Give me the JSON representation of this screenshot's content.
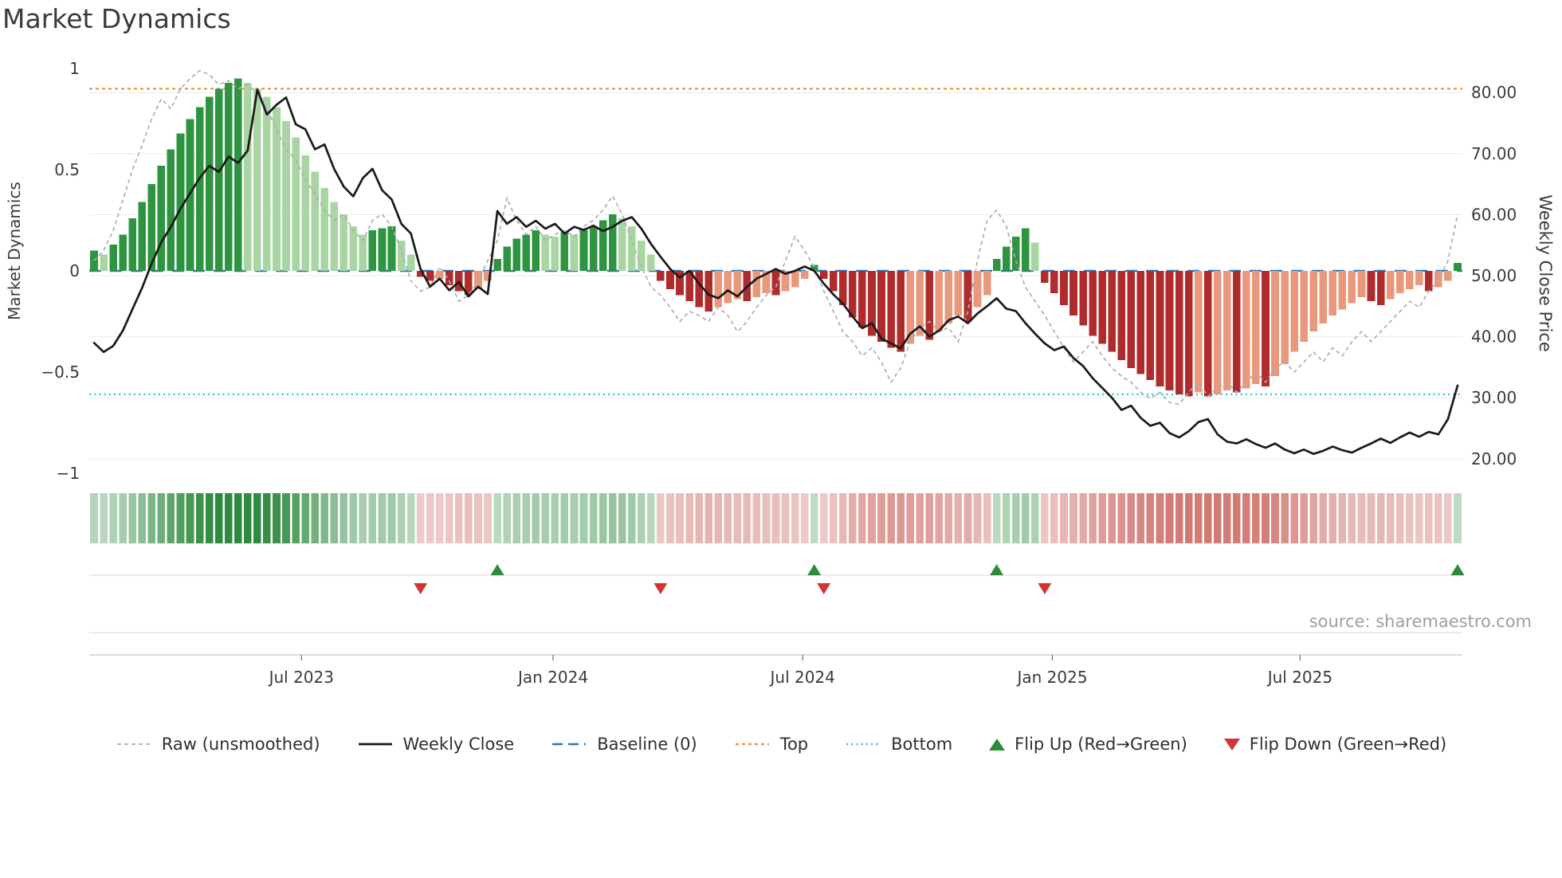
{
  "title": "Market Dynamics",
  "y_left_label": "Market Dynamics",
  "y_right_label": "Weekly Close Price",
  "source": "source: sharemaestro.com",
  "legend": {
    "raw": "Raw (unsmoothed)",
    "close": "Weekly Close",
    "baseline": "Baseline (0)",
    "top": "Top",
    "bottom": "Bottom",
    "flip_up": "Flip Up (Red→Green)",
    "flip_down": "Flip Down (Green→Red)"
  },
  "colors": {
    "bar_pos_strong": "#2e9440",
    "bar_pos_weak": "#a8d5a2",
    "bar_neg_strong": "#b02c2c",
    "bar_neg_weak": "#e8997d",
    "heat_pos": "#2d8a3e",
    "heat_neg": "#c4524a",
    "raw_line": "#aeaeae",
    "close_line": "#1a1a1a",
    "baseline": "#2878b5",
    "top_line": "#e6964a",
    "bottom_line": "#3fc6e0",
    "flip_up": "#2e8b3c",
    "flip_down": "#d23435",
    "grid": "#ebebeb",
    "tick_text": "#3a3a3a"
  },
  "chart_data": {
    "type": "bar",
    "title": "Market Dynamics",
    "ylabel_left": "Market Dynamics",
    "ylabel_right": "Weekly Close Price",
    "n_weeks": 143,
    "baseline": 0,
    "top_threshold": 0.9,
    "bottom_threshold": -0.61,
    "y_left_range": [
      -1.04,
      1.05
    ],
    "y_right_range": [
      17.5,
      85.5
    ],
    "y_left_ticks": [
      -1,
      -0.5,
      0,
      0.5,
      1
    ],
    "y_left_tick_labels": [
      "−1",
      "−0.5",
      "0",
      "0.5",
      "1"
    ],
    "y_right_ticks": [
      20,
      30,
      40,
      50,
      60,
      70,
      80
    ],
    "y_right_tick_labels": [
      "20.00",
      "30.00",
      "40.00",
      "50.00",
      "60.00",
      "70.00",
      "80.00"
    ],
    "x_ticks": [
      {
        "pos": 21.6,
        "label": "Jul 2023"
      },
      {
        "pos": 47.8,
        "label": "Jan 2024"
      },
      {
        "pos": 73.8,
        "label": "Jul 2024"
      },
      {
        "pos": 99.8,
        "label": "Jan 2025"
      },
      {
        "pos": 125.6,
        "label": "Jul 2025"
      }
    ],
    "flip_up_weeks": [
      42,
      75,
      94,
      142
    ],
    "flip_down_weeks": [
      34,
      59,
      76,
      99
    ],
    "oscillator": [
      0.1,
      0.08,
      0.13,
      0.18,
      0.26,
      0.34,
      0.43,
      0.52,
      0.6,
      0.68,
      0.75,
      0.81,
      0.86,
      0.9,
      0.93,
      0.95,
      0.93,
      0.9,
      0.86,
      0.81,
      0.74,
      0.66,
      0.57,
      0.49,
      0.41,
      0.34,
      0.28,
      0.22,
      0.18,
      0.2,
      0.21,
      0.22,
      0.15,
      0.08,
      -0.03,
      -0.05,
      -0.04,
      -0.07,
      -0.1,
      -0.12,
      -0.09,
      -0.05,
      0.06,
      0.12,
      0.16,
      0.18,
      0.2,
      0.18,
      0.17,
      0.19,
      0.18,
      0.2,
      0.22,
      0.25,
      0.28,
      0.26,
      0.22,
      0.15,
      0.08,
      -0.05,
      -0.09,
      -0.12,
      -0.15,
      -0.18,
      -0.2,
      -0.18,
      -0.16,
      -0.14,
      -0.15,
      -0.13,
      -0.11,
      -0.12,
      -0.1,
      -0.08,
      -0.04,
      0.03,
      -0.04,
      -0.1,
      -0.17,
      -0.23,
      -0.28,
      -0.32,
      -0.35,
      -0.38,
      -0.4,
      -0.36,
      -0.32,
      -0.34,
      -0.3,
      -0.26,
      -0.22,
      -0.25,
      -0.18,
      -0.12,
      0.06,
      0.12,
      0.17,
      0.21,
      0.14,
      -0.06,
      -0.11,
      -0.17,
      -0.22,
      -0.27,
      -0.32,
      -0.36,
      -0.4,
      -0.44,
      -0.48,
      -0.51,
      -0.54,
      -0.57,
      -0.59,
      -0.61,
      -0.62,
      -0.6,
      -0.62,
      -0.61,
      -0.59,
      -0.6,
      -0.58,
      -0.56,
      -0.57,
      -0.52,
      -0.46,
      -0.4,
      -0.35,
      -0.3,
      -0.26,
      -0.22,
      -0.19,
      -0.16,
      -0.13,
      -0.15,
      -0.17,
      -0.14,
      -0.11,
      -0.09,
      -0.07,
      -0.1,
      -0.08,
      -0.05,
      0.04
    ],
    "raw": [
      0.05,
      0.1,
      0.2,
      0.35,
      0.5,
      0.62,
      0.75,
      0.85,
      0.8,
      0.9,
      0.95,
      0.99,
      0.97,
      0.92,
      0.94,
      0.9,
      0.92,
      0.88,
      0.8,
      0.7,
      0.6,
      0.55,
      0.45,
      0.38,
      0.3,
      0.25,
      0.28,
      0.2,
      0.15,
      0.25,
      0.28,
      0.22,
      0.1,
      -0.05,
      -0.1,
      -0.08,
      0.02,
      -0.05,
      -0.15,
      -0.12,
      -0.05,
      0.05,
      0.15,
      0.36,
      0.25,
      0.18,
      0.22,
      0.15,
      0.18,
      0.2,
      0.17,
      0.22,
      0.25,
      0.3,
      0.37,
      0.28,
      0.15,
      0.02,
      -0.08,
      -0.12,
      -0.18,
      -0.25,
      -0.2,
      -0.22,
      -0.25,
      -0.18,
      -0.22,
      -0.3,
      -0.25,
      -0.18,
      -0.12,
      -0.08,
      0.05,
      0.17,
      0.1,
      0.02,
      -0.1,
      -0.2,
      -0.3,
      -0.35,
      -0.42,
      -0.38,
      -0.45,
      -0.55,
      -0.48,
      -0.35,
      -0.28,
      -0.25,
      -0.3,
      -0.28,
      -0.35,
      -0.2,
      0.05,
      0.25,
      0.3,
      0.22,
      0.05,
      -0.08,
      -0.15,
      -0.22,
      -0.3,
      -0.38,
      -0.45,
      -0.4,
      -0.35,
      -0.42,
      -0.48,
      -0.52,
      -0.55,
      -0.6,
      -0.63,
      -0.6,
      -0.65,
      -0.66,
      -0.6,
      -0.55,
      -0.62,
      -0.58,
      -0.55,
      -0.6,
      -0.55,
      -0.5,
      -0.55,
      -0.48,
      -0.45,
      -0.5,
      -0.45,
      -0.4,
      -0.45,
      -0.38,
      -0.42,
      -0.35,
      -0.3,
      -0.35,
      -0.3,
      -0.25,
      -0.2,
      -0.15,
      -0.18,
      -0.1,
      -0.05,
      0.05,
      0.28
    ],
    "weekly_close": [
      39,
      37.5,
      38.5,
      41,
      44.5,
      48,
      52,
      55.5,
      58,
      61,
      63.5,
      66,
      68,
      67,
      69.5,
      68.5,
      70.5,
      80.5,
      76.4,
      78,
      79.2,
      74.8,
      74,
      70.7,
      71.5,
      67.5,
      64.6,
      63,
      66,
      67.5,
      64,
      62.5,
      58.5,
      56.9,
      51.1,
      48.2,
      49.5,
      47.6,
      49,
      46.6,
      48.2,
      47,
      60.6,
      58.5,
      59.6,
      58,
      59,
      57.7,
      58.5,
      56.9,
      58,
      57.5,
      58.2,
      57.3,
      58,
      59,
      59.6,
      57.7,
      55.2,
      53.1,
      51.1,
      49.7,
      50.8,
      48.7,
      46.9,
      46.3,
      47.6,
      46.6,
      48.2,
      49.5,
      50.3,
      51.1,
      50.3,
      50.8,
      51.5,
      50.8,
      48.7,
      46.9,
      45.4,
      43.3,
      41.4,
      42.2,
      39.7,
      38.9,
      38.1,
      40.5,
      41.7,
      40,
      41,
      42.7,
      43.3,
      42.2,
      43.8,
      45,
      46.3,
      44.6,
      44.2,
      42.2,
      40.5,
      38.9,
      37.8,
      38.4,
      36.5,
      35.2,
      33.2,
      31.6,
      30,
      28,
      28.7,
      26.7,
      25.4,
      25.9,
      24.2,
      23.5,
      24.5,
      26,
      26.5,
      24,
      22.8,
      22.5,
      23.2,
      22.4,
      21.8,
      22.5,
      21.5,
      20.9,
      21.5,
      20.8,
      21.3,
      22,
      21.4,
      21,
      21.8,
      22.5,
      23.3,
      22.6,
      23.5,
      24.3,
      23.6,
      24.4,
      24,
      26.5,
      32
    ]
  }
}
